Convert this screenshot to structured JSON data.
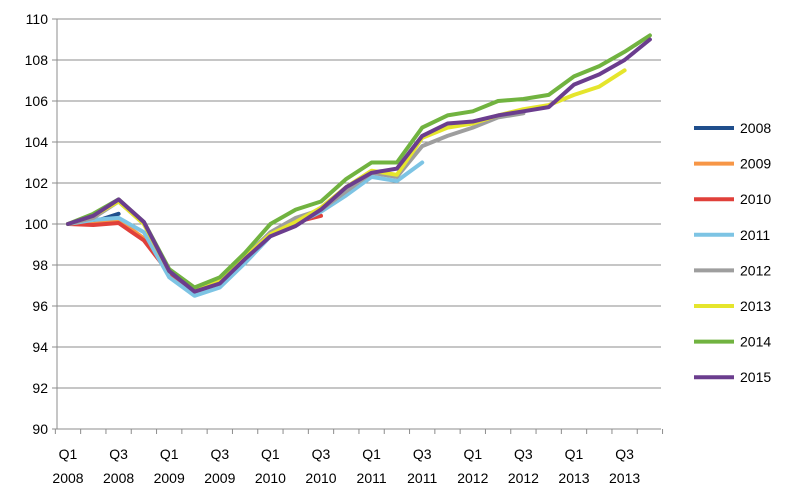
{
  "chart_data": {
    "type": "line",
    "title": "",
    "xlabel": "",
    "ylabel": "",
    "ylim": [
      90,
      110
    ],
    "yticks": [
      90,
      92,
      94,
      96,
      98,
      100,
      102,
      104,
      106,
      108,
      110
    ],
    "grid": "horizontal",
    "legend_position": "right",
    "x_tick_labels": [
      {
        "index": 0,
        "quarter": "Q1",
        "year": "2008"
      },
      {
        "index": 2,
        "quarter": "Q3",
        "year": "2008"
      },
      {
        "index": 4,
        "quarter": "Q1",
        "year": "2009"
      },
      {
        "index": 6,
        "quarter": "Q3",
        "year": "2009"
      },
      {
        "index": 8,
        "quarter": "Q1",
        "year": "2010"
      },
      {
        "index": 10,
        "quarter": "Q3",
        "year": "2010"
      },
      {
        "index": 12,
        "quarter": "Q1",
        "year": "2011"
      },
      {
        "index": 14,
        "quarter": "Q3",
        "year": "2011"
      },
      {
        "index": 16,
        "quarter": "Q1",
        "year": "2012"
      },
      {
        "index": 18,
        "quarter": "Q3",
        "year": "2012"
      },
      {
        "index": 20,
        "quarter": "Q1",
        "year": "2013"
      },
      {
        "index": 22,
        "quarter": "Q3",
        "year": "2013"
      }
    ],
    "series": [
      {
        "name": "2008",
        "color": "#1F4E8C",
        "values": [
          100.0,
          100.1,
          100.5
        ]
      },
      {
        "name": "2009",
        "color": "#F79646",
        "values": [
          100.0,
          100.0,
          100.2,
          99.3,
          97.6,
          96.7,
          97.1
        ]
      },
      {
        "name": "2010",
        "color": "#E0403A",
        "values": [
          100.0,
          99.95,
          100.05,
          99.2,
          97.6,
          96.6,
          97.0,
          98.3,
          99.5,
          100.1,
          100.4
        ]
      },
      {
        "name": "2011",
        "color": "#7DC4E4",
        "values": [
          100.0,
          100.2,
          100.3,
          99.6,
          97.4,
          96.5,
          96.9,
          98.1,
          99.4,
          100.0,
          100.6,
          101.4,
          102.3,
          102.1,
          103.0
        ]
      },
      {
        "name": "2012",
        "color": "#9E9E9E",
        "values": [
          100.0,
          100.3,
          101.1,
          100.0,
          97.7,
          96.8,
          97.1,
          98.4,
          99.6,
          100.3,
          100.7,
          101.6,
          102.5,
          102.3,
          103.8,
          104.3,
          104.7,
          105.2,
          105.4
        ]
      },
      {
        "name": "2013",
        "color": "#E5E52C",
        "values": [
          100.0,
          100.4,
          101.1,
          100.0,
          97.7,
          96.8,
          97.2,
          98.4,
          99.5,
          100.1,
          100.8,
          101.8,
          102.6,
          102.4,
          104.2,
          104.7,
          104.9,
          105.3,
          105.6,
          105.8,
          106.3,
          106.7,
          107.5
        ]
      },
      {
        "name": "2014",
        "color": "#71B340",
        "values": [
          100.0,
          100.5,
          101.2,
          100.1,
          97.8,
          96.9,
          97.4,
          98.6,
          100.0,
          100.7,
          101.1,
          102.2,
          103.0,
          103.0,
          104.7,
          105.3,
          105.5,
          106.0,
          106.1,
          106.3,
          107.2,
          107.7,
          108.4,
          109.2
        ]
      },
      {
        "name": "2015",
        "color": "#6B3D8E",
        "values": [
          100.0,
          100.4,
          101.2,
          100.1,
          97.7,
          96.7,
          97.1,
          98.3,
          99.4,
          99.9,
          100.7,
          101.8,
          102.5,
          102.7,
          104.3,
          104.9,
          105.0,
          105.3,
          105.5,
          105.7,
          106.8,
          107.3,
          108.0,
          109.0
        ]
      }
    ]
  }
}
